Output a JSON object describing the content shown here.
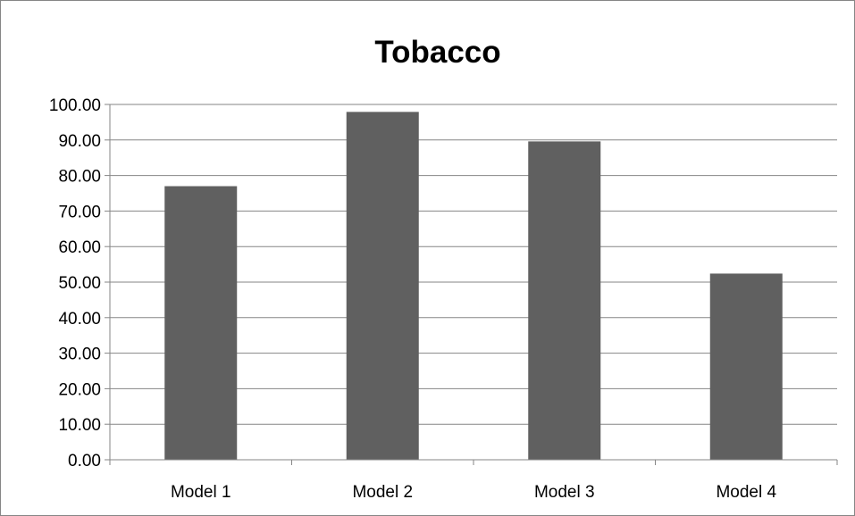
{
  "chart_data": {
    "type": "bar",
    "title": "Tobacco",
    "categories": [
      "Model 1",
      "Model 2",
      "Model 3",
      "Model 4"
    ],
    "values": [
      77.0,
      97.9,
      89.6,
      52.4
    ],
    "ylim": [
      0,
      100
    ],
    "yticks": [
      "0.00",
      "10.00",
      "20.00",
      "30.00",
      "40.00",
      "50.00",
      "60.00",
      "70.00",
      "80.00",
      "90.00",
      "100.00"
    ],
    "grid": true,
    "legend": "none",
    "bar_color": "#606060",
    "grid_color": "#868686"
  }
}
